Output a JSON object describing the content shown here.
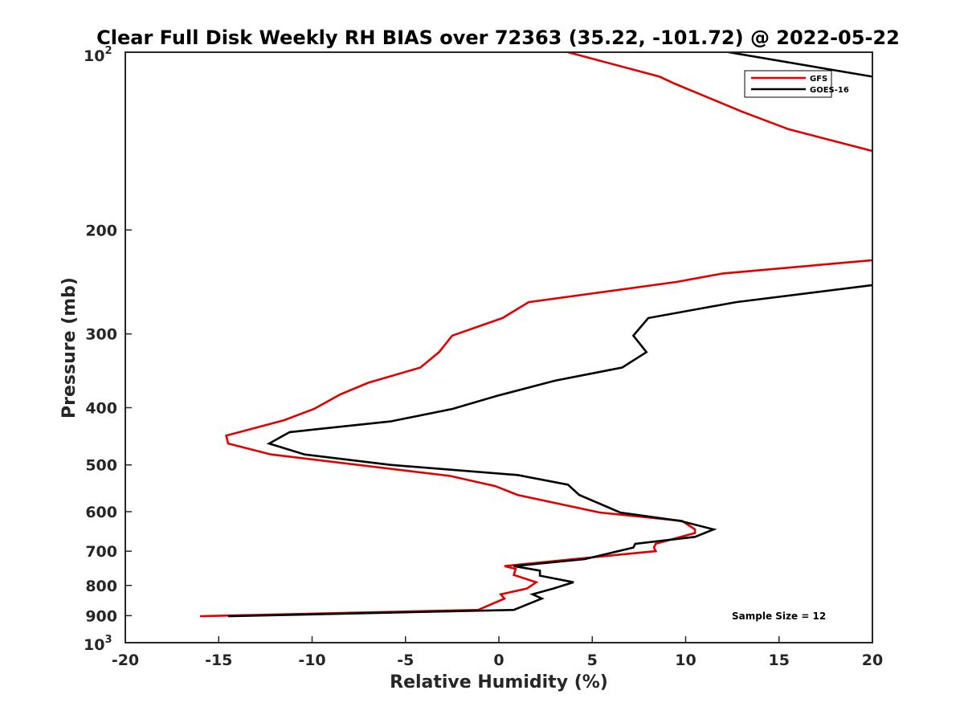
{
  "chart_data": {
    "type": "line",
    "title": "Clear Full Disk Weekly RH BIAS over 72363 (35.22, -101.72) @ 2022-05-22",
    "xlabel": "Relative Humidity (%)",
    "ylabel": "Pressure (mb)",
    "xlim": [
      -20,
      20
    ],
    "ylim": [
      100,
      1000
    ],
    "yscale": "log",
    "y_reversed": true,
    "x_ticks": [
      -20,
      -15,
      -10,
      -5,
      0,
      5,
      10,
      15,
      20
    ],
    "x_tick_labels": [
      "-20",
      "-15",
      "-10",
      "-5",
      "0",
      "5",
      "10",
      "15",
      "20"
    ],
    "y_ticks": [
      200,
      300,
      400,
      500,
      600,
      700,
      800,
      900
    ],
    "y_tick_labels": [
      "200",
      "300",
      "400",
      "500",
      "600",
      "700",
      "800",
      "900"
    ],
    "y_top_label": {
      "base": "10",
      "exp": "2"
    },
    "y_bottom_label": {
      "base": "10",
      "exp": "3"
    },
    "grid": false,
    "legend_position": "top-right",
    "annotation": "Sample Size = 12",
    "series": [
      {
        "name": "GFS",
        "color": "#e00000",
        "points": [
          [
            3.7,
            100
          ],
          [
            8.6,
            110
          ],
          [
            9.4,
            113
          ],
          [
            13.0,
            126
          ],
          [
            15.5,
            135
          ],
          [
            20.0,
            147
          ],
          [
            null,
            null
          ],
          [
            20.0,
            225
          ],
          [
            12.0,
            237
          ],
          [
            9.5,
            245
          ],
          [
            1.6,
            265
          ],
          [
            0.2,
            282
          ],
          [
            -2.5,
            302
          ],
          [
            -3.2,
            322
          ],
          [
            -4.2,
            342
          ],
          [
            -7.0,
            363
          ],
          [
            -8.5,
            380
          ],
          [
            -9.9,
            402
          ],
          [
            -11.5,
            420
          ],
          [
            -14.6,
            446
          ],
          [
            -14.5,
            460
          ],
          [
            -12.2,
            480
          ],
          [
            -2.6,
            522
          ],
          [
            -0.2,
            543
          ],
          [
            1.0,
            562
          ],
          [
            5.4,
            602
          ],
          [
            9.8,
            622
          ],
          [
            10.5,
            643
          ],
          [
            10.5,
            652
          ],
          [
            8.4,
            680
          ],
          [
            8.3,
            690
          ],
          [
            8.4,
            700
          ],
          [
            4.0,
            722
          ],
          [
            0.3,
            742
          ],
          [
            0.9,
            750
          ],
          [
            0.8,
            768
          ],
          [
            2.0,
            790
          ],
          [
            1.5,
            810
          ],
          [
            0.1,
            828
          ],
          [
            0.3,
            842
          ],
          [
            -1.1,
            880
          ],
          [
            -16.0,
            902
          ]
        ]
      },
      {
        "name": "GOES-16",
        "color": "#000000",
        "points": [
          [
            12.3,
            100
          ],
          [
            20.0,
            110
          ],
          [
            null,
            null
          ],
          [
            20.0,
            248
          ],
          [
            12.7,
            265
          ],
          [
            8.0,
            282
          ],
          [
            7.2,
            302
          ],
          [
            7.9,
            322
          ],
          [
            6.6,
            342
          ],
          [
            3.0,
            360
          ],
          [
            -0.1,
            382
          ],
          [
            -2.5,
            402
          ],
          [
            -5.8,
            422
          ],
          [
            -11.2,
            440
          ],
          [
            -12.3,
            460
          ],
          [
            -10.4,
            480
          ],
          [
            -5.8,
            500
          ],
          [
            1.0,
            520
          ],
          [
            3.7,
            540
          ],
          [
            4.3,
            562
          ],
          [
            6.5,
            602
          ],
          [
            9.7,
            622
          ],
          [
            11.5,
            643
          ],
          [
            10.5,
            662
          ],
          [
            7.3,
            680
          ],
          [
            7.2,
            690
          ],
          [
            4.6,
            722
          ],
          [
            0.8,
            742
          ],
          [
            2.2,
            755
          ],
          [
            2.2,
            770
          ],
          [
            4.0,
            790
          ],
          [
            2.9,
            810
          ],
          [
            1.8,
            828
          ],
          [
            2.3,
            842
          ],
          [
            0.8,
            880
          ],
          [
            -14.5,
            902
          ]
        ]
      }
    ]
  }
}
